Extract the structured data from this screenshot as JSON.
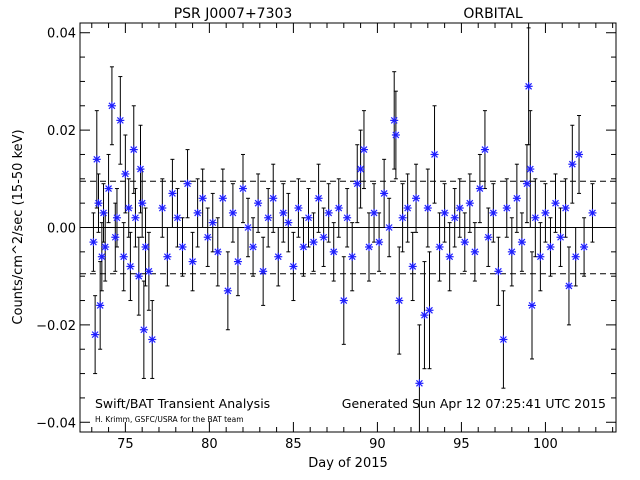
{
  "chart_data": {
    "type": "scatter",
    "title_left": "PSR J0007+7303",
    "title_right": "ORBITAL",
    "xlabel": "Day of 2015",
    "ylabel": "Counts/cm^2/sec (15-50 keV)",
    "xlim": [
      72.3,
      104.2
    ],
    "ylim": [
      -0.042,
      0.042
    ],
    "xticks": [
      75,
      80,
      85,
      90,
      95,
      100
    ],
    "xtick_labels": [
      "75",
      "80",
      "85",
      "90",
      "95",
      "100"
    ],
    "yticks": [
      -0.04,
      -0.02,
      0.0,
      0.02,
      0.04
    ],
    "ytick_labels": [
      "−0.04",
      "−0.02",
      "0.00",
      "0.02",
      "0.04"
    ],
    "reference_lines": {
      "solid": 0.0,
      "dashed": [
        0.0095,
        -0.0095
      ]
    },
    "annotations": {
      "bottom_left": "Swift/BAT Transient Analysis",
      "bottom_left_small": "H. Krimm, GSFC/USRA for the BAT team",
      "bottom_right": "Generated Sun Apr 12 07:25:41 UTC 2015"
    },
    "colors": {
      "marker": "#1f1fff",
      "errorbar": "#000000",
      "axes": "#000000"
    },
    "series": [
      {
        "marker": "asterisk",
        "x": [
          73.1,
          73.2,
          73.3,
          73.4,
          73.5,
          73.6,
          73.7,
          73.8,
          74.0,
          74.2,
          74.4,
          74.5,
          74.7,
          74.9,
          75.0,
          75.2,
          75.3,
          75.5,
          75.6,
          75.8,
          75.9,
          76.0,
          76.1,
          76.2,
          76.4,
          76.6,
          77.2,
          77.5,
          77.8,
          78.1,
          78.4,
          78.7,
          79.0,
          79.3,
          79.6,
          79.9,
          80.2,
          80.5,
          80.8,
          81.1,
          81.4,
          81.7,
          82.0,
          82.3,
          82.6,
          82.9,
          83.2,
          83.5,
          83.8,
          84.1,
          84.4,
          84.7,
          85.0,
          85.3,
          85.6,
          85.9,
          86.2,
          86.5,
          86.8,
          87.1,
          87.4,
          87.7,
          88.0,
          88.2,
          88.5,
          88.8,
          89.0,
          89.2,
          89.5,
          89.8,
          90.1,
          90.4,
          90.7,
          91.0,
          91.1,
          91.3,
          91.5,
          91.8,
          92.1,
          92.3,
          92.5,
          92.8,
          93.0,
          93.1,
          93.4,
          93.7,
          94.0,
          94.3,
          94.6,
          94.9,
          95.2,
          95.5,
          95.8,
          96.1,
          96.4,
          96.6,
          96.9,
          97.2,
          97.5,
          97.7,
          98.0,
          98.3,
          98.6,
          98.9,
          99.0,
          99.1,
          99.2,
          99.4,
          99.7,
          100.0,
          100.3,
          100.6,
          100.9,
          101.2,
          101.4,
          101.6,
          101.8,
          102.0,
          102.3,
          102.8
        ],
        "y": [
          -0.003,
          -0.022,
          0.014,
          0.005,
          -0.016,
          -0.006,
          0.003,
          -0.004,
          0.008,
          0.025,
          -0.002,
          0.002,
          0.022,
          -0.006,
          0.011,
          0.004,
          -0.008,
          0.016,
          0.002,
          -0.01,
          0.012,
          0.005,
          -0.021,
          -0.004,
          -0.009,
          -0.023,
          0.004,
          -0.006,
          0.007,
          0.002,
          -0.004,
          0.009,
          -0.007,
          0.003,
          0.006,
          -0.002,
          0.001,
          -0.005,
          0.006,
          -0.013,
          0.003,
          -0.007,
          0.008,
          0.0,
          -0.004,
          0.005,
          -0.009,
          0.002,
          0.006,
          -0.006,
          0.003,
          0.001,
          -0.008,
          0.004,
          -0.004,
          0.002,
          -0.003,
          0.006,
          -0.002,
          0.003,
          -0.005,
          0.004,
          -0.015,
          0.002,
          -0.006,
          0.009,
          0.012,
          0.016,
          -0.004,
          0.003,
          -0.003,
          0.007,
          0.0,
          0.022,
          0.019,
          -0.015,
          0.002,
          0.004,
          -0.008,
          0.006,
          -0.032,
          -0.018,
          0.004,
          -0.017,
          0.015,
          -0.004,
          0.003,
          -0.006,
          0.002,
          0.004,
          -0.003,
          0.005,
          -0.005,
          0.008,
          0.016,
          -0.002,
          0.003,
          -0.009,
          -0.023,
          0.004,
          -0.005,
          0.006,
          -0.003,
          0.009,
          0.029,
          0.012,
          -0.016,
          0.002,
          -0.006,
          0.003,
          -0.004,
          0.005,
          -0.002,
          0.004,
          -0.012,
          0.013,
          -0.006,
          0.015,
          -0.004,
          0.003
        ],
        "err": [
          0.006,
          0.008,
          0.01,
          0.006,
          0.009,
          0.007,
          0.006,
          0.007,
          0.007,
          0.008,
          0.007,
          0.006,
          0.009,
          0.007,
          0.008,
          0.006,
          0.007,
          0.009,
          0.006,
          0.008,
          0.009,
          0.007,
          0.01,
          0.008,
          0.008,
          0.008,
          0.006,
          0.006,
          0.007,
          0.006,
          0.006,
          0.007,
          0.006,
          0.007,
          0.006,
          0.006,
          0.006,
          0.007,
          0.006,
          0.008,
          0.006,
          0.007,
          0.007,
          0.006,
          0.006,
          0.006,
          0.007,
          0.006,
          0.007,
          0.006,
          0.006,
          0.006,
          0.007,
          0.006,
          0.006,
          0.006,
          0.006,
          0.007,
          0.006,
          0.006,
          0.006,
          0.006,
          0.009,
          0.006,
          0.007,
          0.008,
          0.008,
          0.008,
          0.007,
          0.006,
          0.006,
          0.007,
          0.006,
          0.01,
          0.009,
          0.011,
          0.007,
          0.007,
          0.007,
          0.007,
          0.012,
          0.011,
          0.008,
          0.012,
          0.01,
          0.007,
          0.006,
          0.007,
          0.006,
          0.006,
          0.006,
          0.006,
          0.006,
          0.007,
          0.008,
          0.006,
          0.006,
          0.007,
          0.01,
          0.006,
          0.007,
          0.007,
          0.006,
          0.008,
          0.012,
          0.012,
          0.011,
          0.008,
          0.007,
          0.006,
          0.006,
          0.006,
          0.006,
          0.006,
          0.008,
          0.008,
          0.006,
          0.008,
          0.006,
          0.006
        ]
      }
    ]
  }
}
